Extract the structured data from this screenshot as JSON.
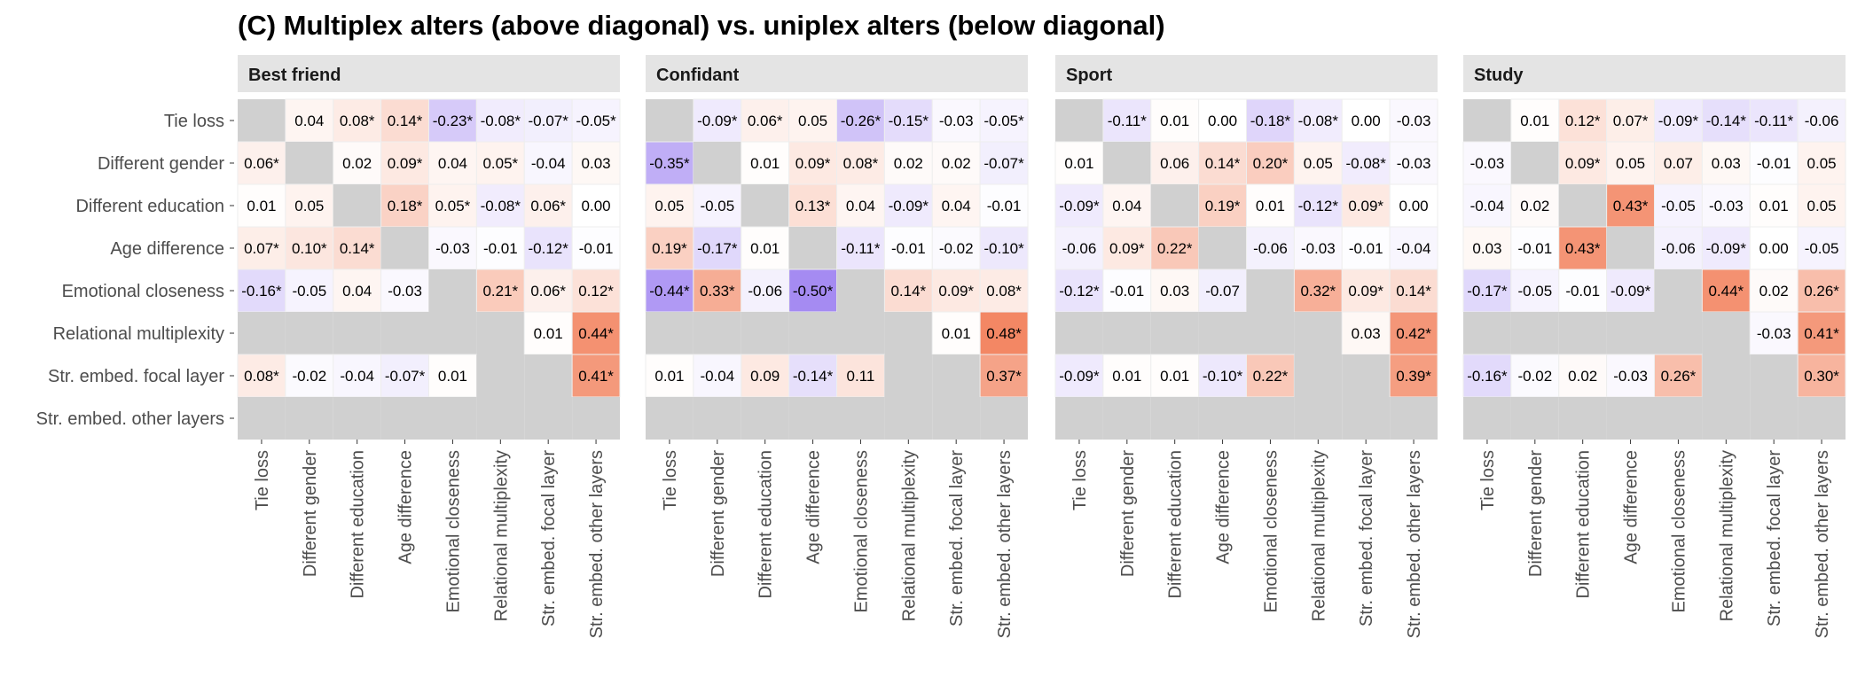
{
  "title": "(C) Multiplex alters (above diagonal) vs. uniplex alters (below diagonal)",
  "colors": {
    "background": "#ffffff",
    "na_cell": "#d0d0d0",
    "strip_bg": "#e4e4e4",
    "negative_strong": "#a58bf2",
    "positive_strong": "#f2825e",
    "neutral": "#ffffff",
    "text": "#000000",
    "axis_text": "#4d4d4d"
  },
  "chart_data": {
    "type": "heatmap",
    "title": "(C) Multiplex alters (above diagonal) vs. uniplex alters (below diagonal)",
    "rows": [
      "Tie loss",
      "Different gender",
      "Different education",
      "Age difference",
      "Emotional closeness",
      "Relational multiplexity",
      "Str. embed. focal layer",
      "Str. embed. other layers"
    ],
    "columns": [
      "Tie loss",
      "Different gender",
      "Different education",
      "Age difference",
      "Emotional closeness",
      "Relational multiplexity",
      "Str. embed. focal layer",
      "Str. embed. other layers"
    ],
    "color_scale": {
      "min": -0.5,
      "mid": 0,
      "max": 0.5
    },
    "panels": [
      {
        "name": "Best friend",
        "cells": [
          [
            null,
            "0.04",
            "0.08*",
            "0.14*",
            "-0.23*",
            "-0.08*",
            "-0.07*",
            "-0.05*"
          ],
          [
            "0.06*",
            null,
            "0.02",
            "0.09*",
            "0.04",
            "0.05*",
            "-0.04",
            "0.03"
          ],
          [
            "0.01",
            "0.05",
            null,
            "0.18*",
            "0.05*",
            "-0.08*",
            "0.06*",
            "0.00"
          ],
          [
            "0.07*",
            "0.10*",
            "0.14*",
            null,
            "-0.03",
            "-0.01",
            "-0.12*",
            "-0.01"
          ],
          [
            "-0.16*",
            "-0.05",
            "0.04",
            "-0.03",
            null,
            "0.21*",
            "0.06*",
            "0.12*"
          ],
          [
            null,
            null,
            null,
            null,
            null,
            null,
            "0.01",
            "0.44*"
          ],
          [
            "0.08*",
            "-0.02",
            "-0.04",
            "-0.07*",
            "0.01",
            null,
            null,
            "0.41*"
          ],
          [
            null,
            null,
            null,
            null,
            null,
            null,
            null,
            null
          ]
        ]
      },
      {
        "name": "Confidant",
        "cells": [
          [
            null,
            "-0.09*",
            "0.06*",
            "0.05",
            "-0.26*",
            "-0.15*",
            "-0.03",
            "-0.05*"
          ],
          [
            "-0.35*",
            null,
            "0.01",
            "0.09*",
            "0.08*",
            "0.02",
            "0.02",
            "-0.07*"
          ],
          [
            "0.05",
            "-0.05",
            null,
            "0.13*",
            "0.04",
            "-0.09*",
            "0.04",
            "-0.01"
          ],
          [
            "0.19*",
            "-0.17*",
            "0.01",
            null,
            "-0.11*",
            "-0.01",
            "-0.02",
            "-0.10*"
          ],
          [
            "-0.44*",
            "0.33*",
            "-0.06",
            "-0.50*",
            null,
            "0.14*",
            "0.09*",
            "0.08*"
          ],
          [
            null,
            null,
            null,
            null,
            null,
            null,
            "0.01",
            "0.48*"
          ],
          [
            "0.01",
            "-0.04",
            "0.09",
            "-0.14*",
            "0.11",
            null,
            null,
            "0.37*"
          ],
          [
            null,
            null,
            null,
            null,
            null,
            null,
            null,
            null
          ]
        ]
      },
      {
        "name": "Sport",
        "cells": [
          [
            null,
            "-0.11*",
            "0.01",
            "0.00",
            "-0.18*",
            "-0.08*",
            "0.00",
            "-0.03"
          ],
          [
            "0.01",
            null,
            "0.06",
            "0.14*",
            "0.20*",
            "0.05",
            "-0.08*",
            "-0.03"
          ],
          [
            "-0.09*",
            "0.04",
            null,
            "0.19*",
            "0.01",
            "-0.12*",
            "0.09*",
            "0.00"
          ],
          [
            "-0.06",
            "0.09*",
            "0.22*",
            null,
            "-0.06",
            "-0.03",
            "-0.01",
            "-0.04"
          ],
          [
            "-0.12*",
            "-0.01",
            "0.03",
            "-0.07",
            null,
            "0.32*",
            "0.09*",
            "0.14*"
          ],
          [
            null,
            null,
            null,
            null,
            null,
            null,
            "0.03",
            "0.42*"
          ],
          [
            "-0.09*",
            "0.01",
            "0.01",
            "-0.10*",
            "0.22*",
            null,
            null,
            "0.39*"
          ],
          [
            null,
            null,
            null,
            null,
            null,
            null,
            null,
            null
          ]
        ]
      },
      {
        "name": "Study",
        "cells": [
          [
            null,
            "0.01",
            "0.12*",
            "0.07*",
            "-0.09*",
            "-0.14*",
            "-0.11*",
            "-0.06"
          ],
          [
            "-0.03",
            null,
            "0.09*",
            "0.05",
            "0.07",
            "0.03",
            "-0.01",
            "0.05"
          ],
          [
            "-0.04",
            "0.02",
            null,
            "0.43*",
            "-0.05",
            "-0.03",
            "0.01",
            "0.05"
          ],
          [
            "0.03",
            "-0.01",
            "0.43*",
            null,
            "-0.06",
            "-0.09*",
            "0.00",
            "-0.05"
          ],
          [
            "-0.17*",
            "-0.05",
            "-0.01",
            "-0.09*",
            null,
            "0.44*",
            "0.02",
            "0.26*"
          ],
          [
            null,
            null,
            null,
            null,
            null,
            null,
            "-0.03",
            "0.41*"
          ],
          [
            "-0.16*",
            "-0.02",
            "0.02",
            "-0.03",
            "0.26*",
            null,
            null,
            "0.30*"
          ],
          [
            null,
            null,
            null,
            null,
            null,
            null,
            null,
            null
          ]
        ]
      }
    ]
  }
}
